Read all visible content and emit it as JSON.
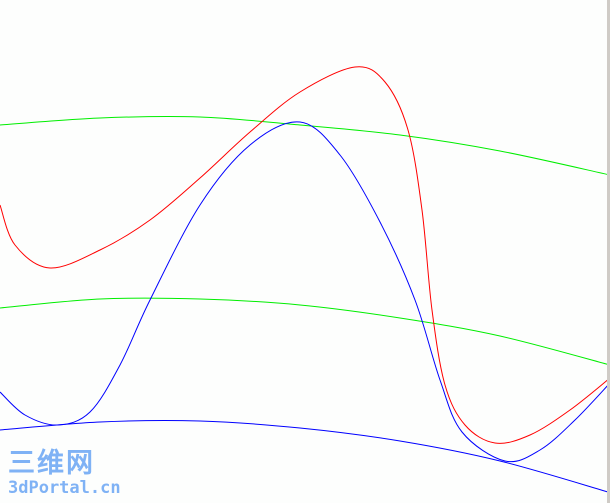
{
  "colors": {
    "red_curve": "#ff0000",
    "blue_curve": "#0000ff",
    "green_curve": "#00ee00",
    "background": "#fdfefd",
    "watermark": "#7fb2f5"
  },
  "watermark": {
    "chinese": "三维网",
    "site": "3dPortal.cn"
  }
}
